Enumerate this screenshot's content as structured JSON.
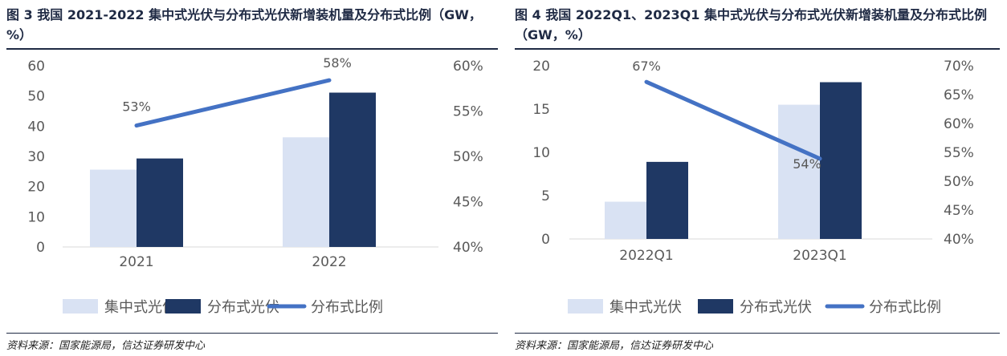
{
  "source_label": "资料来源：国家能源局，信达证券研发中心",
  "legend": {
    "bar1": "集中式光伏",
    "bar2": "分布式光伏",
    "line": "分布式比例"
  },
  "colors": {
    "bar1": "#d9e2f3",
    "bar2": "#1f3864",
    "line": "#4472c4",
    "axis_text": "#595959",
    "title": "#1f2a44"
  },
  "chart_data": [
    {
      "type": "bar",
      "title": "图 3 我国 2021-2022 集中式光伏与分布式光伏新增装机量及分布式比例（GW，%）",
      "categories": [
        "2021",
        "2022"
      ],
      "series": [
        {
          "name": "集中式光伏",
          "type": "bar",
          "axis": "left",
          "values": [
            25.6,
            36.3
          ]
        },
        {
          "name": "分布式光伏",
          "type": "bar",
          "axis": "left",
          "values": [
            29.3,
            51.1
          ]
        },
        {
          "name": "分布式比例",
          "type": "line",
          "axis": "right",
          "values": [
            53.4,
            58.4
          ],
          "labels": [
            "53%",
            "58%"
          ]
        }
      ],
      "y_left": {
        "min": 0,
        "max": 60,
        "ticks": [
          "0",
          "10",
          "20",
          "30",
          "40",
          "50",
          "60"
        ]
      },
      "y_right": {
        "min": 40,
        "max": 60,
        "ticks": [
          "40%",
          "45%",
          "50%",
          "55%",
          "60%"
        ]
      },
      "grid": false,
      "legend_position": "bottom"
    },
    {
      "type": "bar",
      "title": "图 4 我国 2022Q1、2023Q1 集中式光伏与分布式光伏新增装机量及分布式比例（GW，%）",
      "categories": [
        "2022Q1",
        "2023Q1"
      ],
      "series": [
        {
          "name": "集中式光伏",
          "type": "bar",
          "axis": "left",
          "values": [
            4.3,
            15.5
          ]
        },
        {
          "name": "分布式光伏",
          "type": "bar",
          "axis": "left",
          "values": [
            8.9,
            18.1
          ]
        },
        {
          "name": "分布式比例",
          "type": "line",
          "axis": "right",
          "values": [
            67.2,
            53.9
          ],
          "labels": [
            "67%",
            "54%"
          ]
        }
      ],
      "y_left": {
        "min": 0,
        "max": 20,
        "ticks": [
          "0",
          "5",
          "10",
          "15",
          "20"
        ]
      },
      "y_right": {
        "min": 40,
        "max": 70,
        "ticks": [
          "40%",
          "45%",
          "50%",
          "55%",
          "60%",
          "65%",
          "70%"
        ]
      },
      "grid": false,
      "legend_position": "bottom"
    }
  ]
}
